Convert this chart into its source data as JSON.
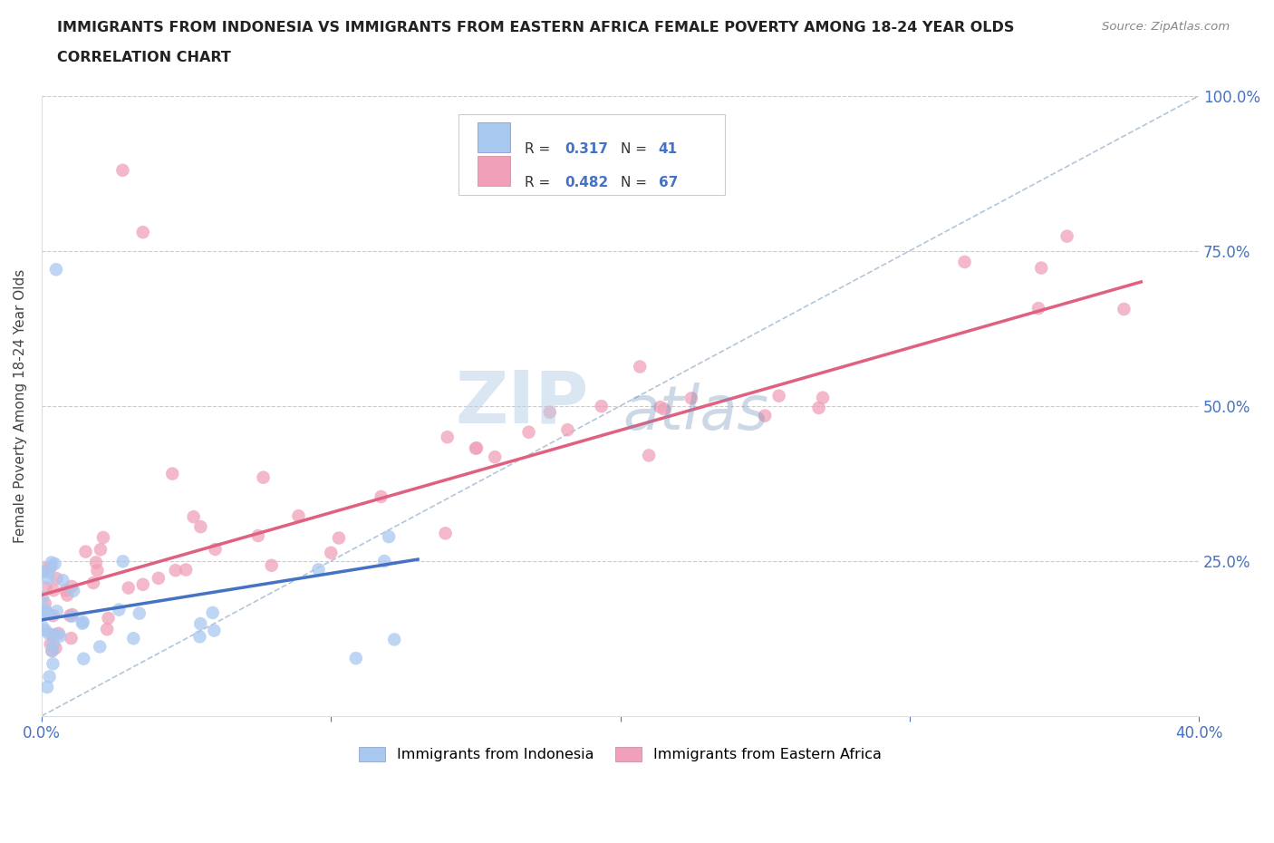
{
  "title_line1": "IMMIGRANTS FROM INDONESIA VS IMMIGRANTS FROM EASTERN AFRICA FEMALE POVERTY AMONG 18-24 YEAR OLDS",
  "title_line2": "CORRELATION CHART",
  "source_text": "Source: ZipAtlas.com",
  "ylabel": "Female Poverty Among 18-24 Year Olds",
  "xlim": [
    0.0,
    0.4
  ],
  "ylim": [
    0.0,
    1.0
  ],
  "grid_color": "#cccccc",
  "watermark_zip": "ZIP",
  "watermark_atlas": "atlas",
  "color_indonesia": "#a8c8f0",
  "color_eastern_africa": "#f0a0b8",
  "color_line_indonesia": "#4472c4",
  "color_line_eastern_africa": "#e06080",
  "label_indonesia": "Immigrants from Indonesia",
  "label_eastern_africa": "Immigrants from Eastern Africa",
  "R_indonesia": 0.317,
  "N_indonesia": 41,
  "R_eastern_africa": 0.482,
  "N_eastern_africa": 67,
  "diag_color": "#a0b8d0",
  "title_color": "#222222",
  "source_color": "#888888",
  "tick_color": "#4472c4",
  "ylabel_color": "#444444"
}
